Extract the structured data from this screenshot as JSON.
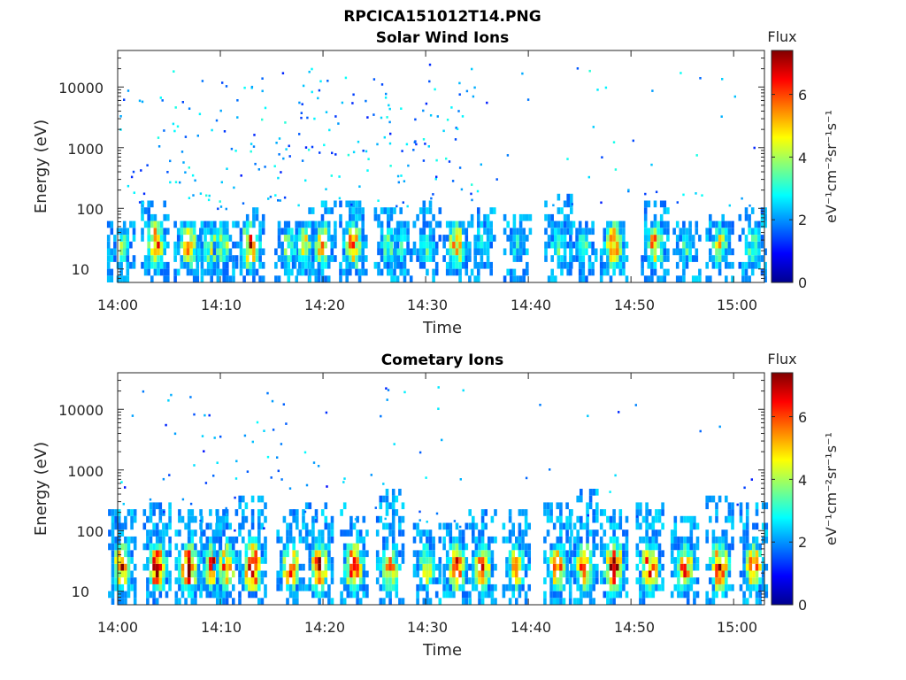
{
  "figure_title": "RPCICA151012T14.PNG",
  "colorbar_label": "Flux",
  "colorbar_unit": "eV⁻¹cm⁻²sr⁻¹s⁻¹",
  "chart_data": [
    {
      "type": "heatmap",
      "title": "Solar Wind Ions",
      "xlabel": "Time",
      "ylabel": "Energy (eV)",
      "x_tick_labels": [
        "14:00",
        "14:10",
        "14:20",
        "14:30",
        "14:40",
        "14:50",
        "15:00"
      ],
      "x_range_minutes": [
        0,
        63
      ],
      "y_scale": "log",
      "y_tick_labels": [
        "10",
        "100",
        "1000",
        "10000"
      ],
      "y_range": [
        6,
        40000
      ],
      "colorbar_ticks": [
        "0",
        "2",
        "4",
        "6"
      ],
      "colorbar_range": [
        0,
        7.4
      ],
      "colormap": "jet",
      "bursts": [
        {
          "t": 0.2,
          "peak": 3.6,
          "top": 60
        },
        {
          "t": 3.5,
          "peak": 6.2,
          "top": 140
        },
        {
          "t": 6.7,
          "peak": 5.5,
          "top": 60
        },
        {
          "t": 9.0,
          "peak": 4.6,
          "top": 60
        },
        {
          "t": 10.2,
          "peak": 4.2,
          "top": 60
        },
        {
          "t": 12.8,
          "peak": 6.4,
          "top": 100
        },
        {
          "t": 16.5,
          "peak": 4.0,
          "top": 60
        },
        {
          "t": 18.2,
          "peak": 4.8,
          "top": 60
        },
        {
          "t": 19.8,
          "peak": 5.2,
          "top": 130
        },
        {
          "t": 22.8,
          "peak": 5.8,
          "top": 120
        },
        {
          "t": 26.2,
          "peak": 3.8,
          "top": 100
        },
        {
          "t": 27.5,
          "peak": 3.4,
          "top": 60
        },
        {
          "t": 30.0,
          "peak": 3.5,
          "top": 130
        },
        {
          "t": 32.9,
          "peak": 5.6,
          "top": 60
        },
        {
          "t": 35.3,
          "peak": 3.4,
          "top": 100
        },
        {
          "t": 38.8,
          "peak": 3.0,
          "top": 80
        },
        {
          "t": 42.8,
          "peak": 3.7,
          "top": 160
        },
        {
          "t": 45.2,
          "peak": 3.4,
          "top": 60
        },
        {
          "t": 48.2,
          "peak": 6.0,
          "top": 60
        },
        {
          "t": 52.2,
          "peak": 5.6,
          "top": 140
        },
        {
          "t": 55.3,
          "peak": 3.5,
          "top": 60
        },
        {
          "t": 58.5,
          "peak": 4.6,
          "top": 80
        },
        {
          "t": 61.7,
          "peak": 3.6,
          "top": 100
        }
      ],
      "scatter_level": 2.2,
      "scatter_density": 1.0
    },
    {
      "type": "heatmap",
      "title": "Cometary Ions",
      "xlabel": "Time",
      "ylabel": "Energy (eV)",
      "x_tick_labels": [
        "14:00",
        "14:10",
        "14:20",
        "14:30",
        "14:40",
        "14:50",
        "15:00"
      ],
      "x_range_minutes": [
        0,
        63
      ],
      "y_scale": "log",
      "y_tick_labels": [
        "10",
        "100",
        "1000",
        "10000"
      ],
      "y_range": [
        6,
        40000
      ],
      "colorbar_ticks": [
        "0",
        "2",
        "4",
        "6"
      ],
      "colorbar_range": [
        0,
        7.4
      ],
      "colormap": "jet",
      "bursts": [
        {
          "t": 0.3,
          "peak": 6.4,
          "top": 250
        },
        {
          "t": 3.7,
          "peak": 7.2,
          "top": 300
        },
        {
          "t": 6.8,
          "peak": 7.1,
          "top": 200
        },
        {
          "t": 9.2,
          "peak": 6.8,
          "top": 200
        },
        {
          "t": 10.5,
          "peak": 6.2,
          "top": 200
        },
        {
          "t": 13.0,
          "peak": 7.3,
          "top": 350
        },
        {
          "t": 16.7,
          "peak": 6.0,
          "top": 200
        },
        {
          "t": 19.5,
          "peak": 6.9,
          "top": 300
        },
        {
          "t": 22.9,
          "peak": 7.0,
          "top": 300
        },
        {
          "t": 26.4,
          "peak": 5.8,
          "top": 500
        },
        {
          "t": 30.0,
          "peak": 4.8,
          "top": 150
        },
        {
          "t": 32.9,
          "peak": 6.2,
          "top": 150
        },
        {
          "t": 35.4,
          "peak": 6.0,
          "top": 250
        },
        {
          "t": 38.7,
          "peak": 5.2,
          "top": 250
        },
        {
          "t": 42.7,
          "peak": 6.0,
          "top": 300
        },
        {
          "t": 45.3,
          "peak": 6.2,
          "top": 500
        },
        {
          "t": 48.2,
          "peak": 7.2,
          "top": 250
        },
        {
          "t": 51.7,
          "peak": 6.6,
          "top": 300
        },
        {
          "t": 55.1,
          "peak": 6.0,
          "top": 180
        },
        {
          "t": 58.5,
          "peak": 7.0,
          "top": 400
        },
        {
          "t": 61.8,
          "peak": 6.2,
          "top": 300
        }
      ],
      "scatter_level": 2.0,
      "scatter_density": 0.4
    }
  ]
}
